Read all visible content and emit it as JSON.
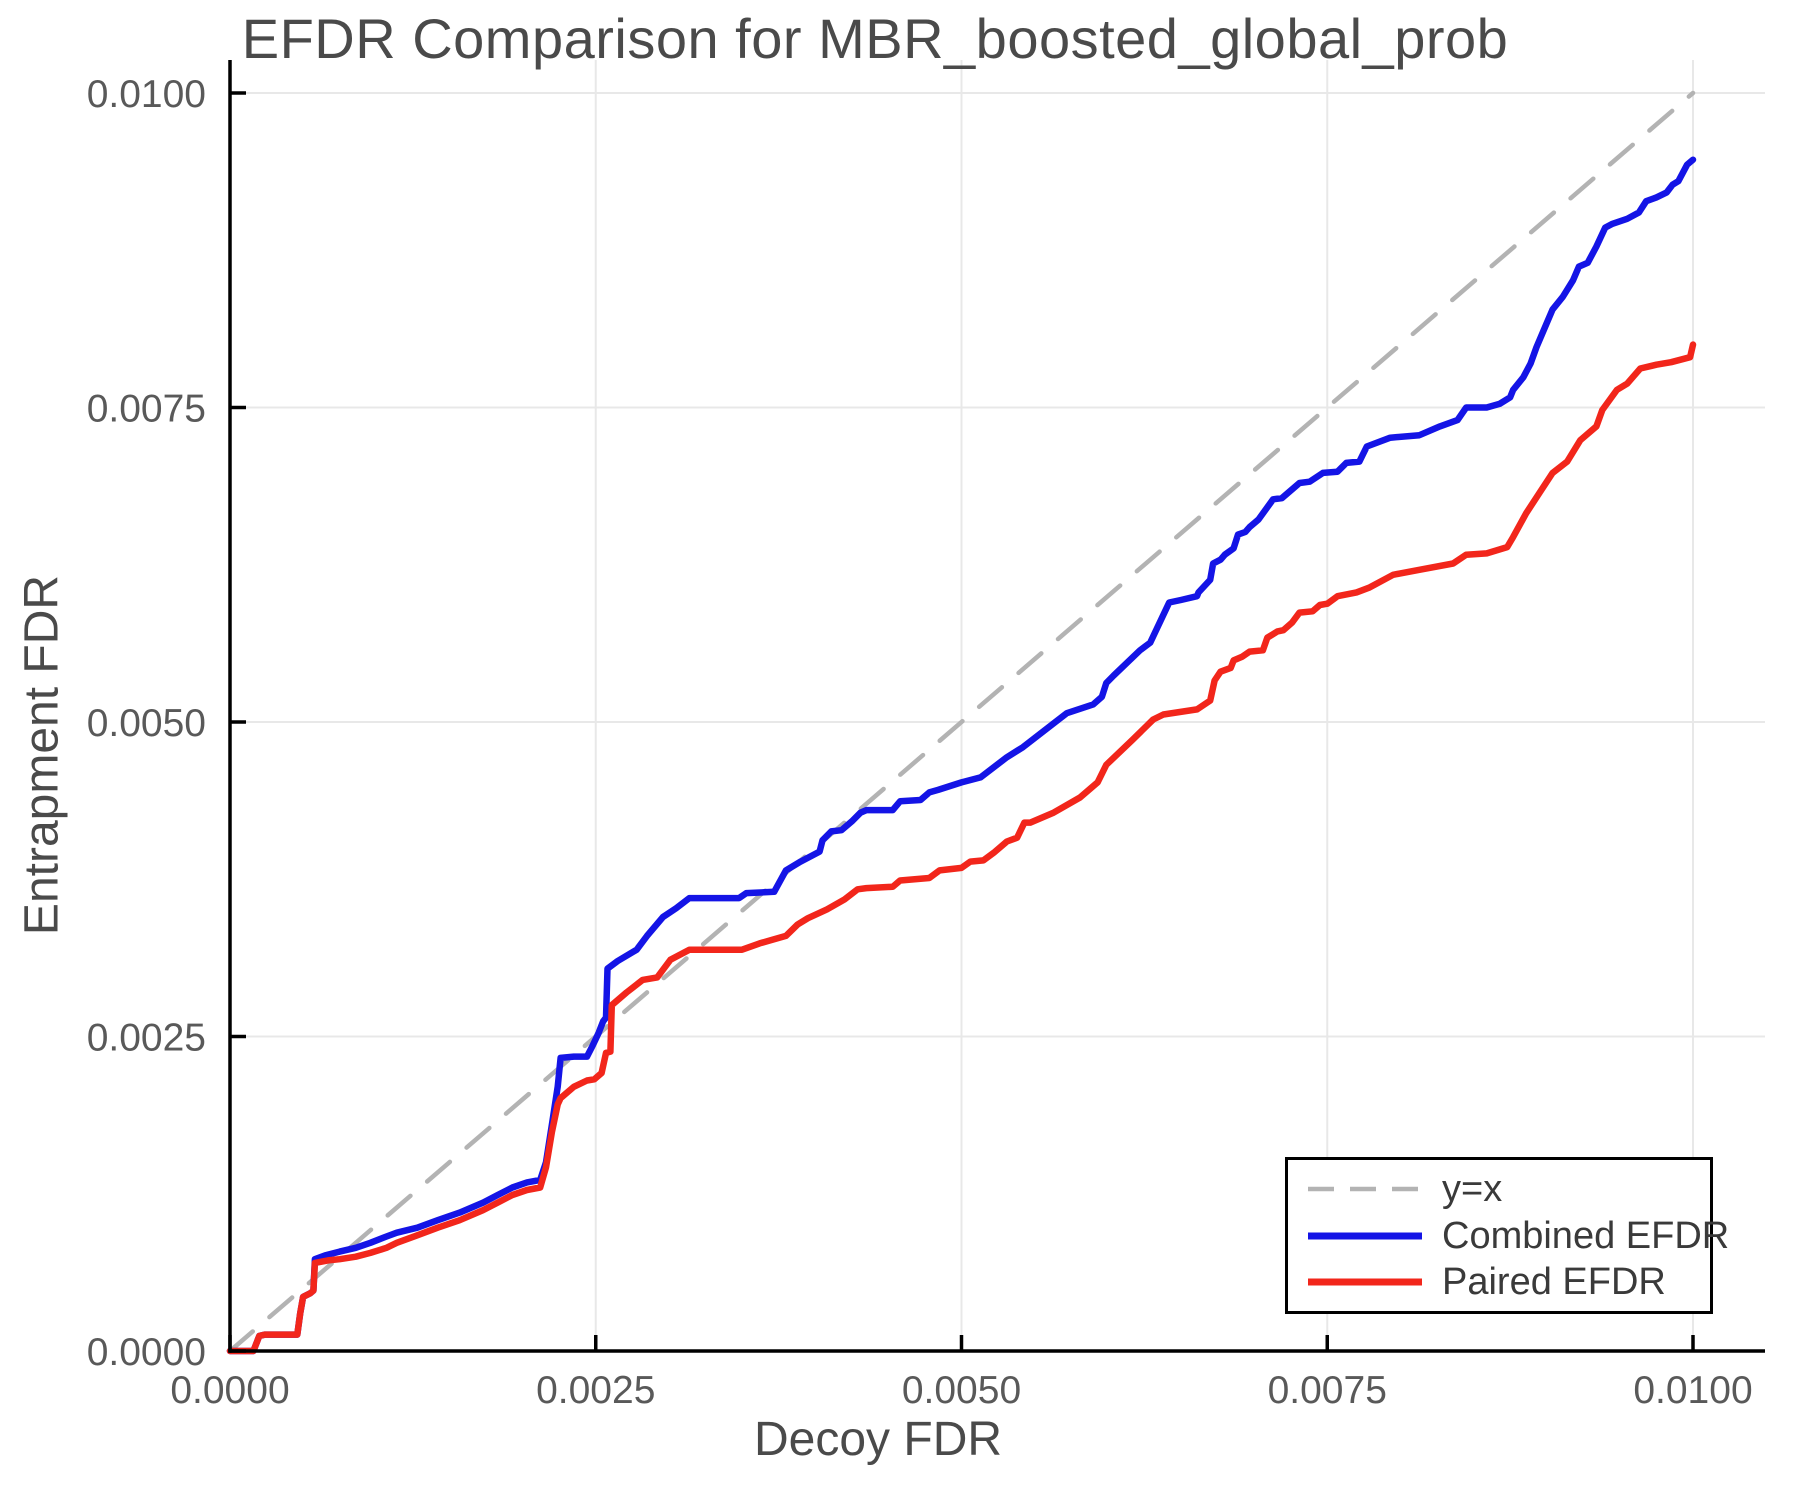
{
  "chart_data": {
    "type": "line",
    "title": "EFDR Comparison for MBR_boosted_global_prob",
    "xlabel": "Decoy FDR",
    "ylabel": "Entrapment FDR",
    "xlim": [
      0,
      0.01
    ],
    "ylim": [
      0,
      0.01
    ],
    "grid": true,
    "legend_position": "bottom-right",
    "x_ticks": {
      "values": [
        0,
        0.0025,
        0.005,
        0.0075,
        0.01
      ],
      "labels": [
        "0.0000",
        "0.0025",
        "0.0050",
        "0.0075",
        "0.0100"
      ]
    },
    "y_ticks": {
      "values": [
        0,
        0.0025,
        0.005,
        0.0075,
        0.01
      ],
      "labels": [
        "0.0000",
        "0.0025",
        "0.0050",
        "0.0075",
        "0.0100"
      ]
    },
    "colors": {
      "identity_line": "#b3b3b3",
      "combined": "#1414e6",
      "paired": "#f2261b",
      "grid": "#e8e8e8",
      "spine": "#000000",
      "tick_label": "#595959",
      "title": "#4a4a4a"
    },
    "series": [
      {
        "name": "y=x",
        "style": "dashed",
        "color": "#b3b3b3",
        "points": [
          [
            0,
            0
          ],
          [
            0.01,
            0.01
          ]
        ]
      },
      {
        "name": "Combined EFDR",
        "style": "solid",
        "color": "#1414e6",
        "points": [
          [
            0,
            0
          ],
          [
            0.00016,
            0
          ],
          [
            0.0002,
            0.00012
          ],
          [
            0.00024,
            0.00013
          ],
          [
            0.00046,
            0.00013
          ],
          [
            0.00048,
            0.0003
          ],
          [
            0.0005,
            0.00043
          ],
          [
            0.00055,
            0.00046
          ],
          [
            0.00057,
            0.00048
          ],
          [
            0.00058,
            0.00073
          ],
          [
            0.00065,
            0.00076
          ],
          [
            0.00075,
            0.00079
          ],
          [
            0.00086,
            0.00082
          ],
          [
            0.00096,
            0.00086
          ],
          [
            0.00107,
            0.00091
          ],
          [
            0.00114,
            0.00094
          ],
          [
            0.00128,
            0.00098
          ],
          [
            0.00142,
            0.00104
          ],
          [
            0.00157,
            0.0011
          ],
          [
            0.00173,
            0.00118
          ],
          [
            0.00183,
            0.00124
          ],
          [
            0.00193,
            0.0013
          ],
          [
            0.00203,
            0.00134
          ],
          [
            0.00212,
            0.00136
          ],
          [
            0.00216,
            0.0015
          ],
          [
            0.0022,
            0.0018
          ],
          [
            0.00224,
            0.0021
          ],
          [
            0.00226,
            0.00233
          ],
          [
            0.00235,
            0.00234
          ],
          [
            0.00244,
            0.00234
          ],
          [
            0.00248,
            0.00243
          ],
          [
            0.00252,
            0.00253
          ],
          [
            0.00255,
            0.00262
          ],
          [
            0.00257,
            0.00265
          ],
          [
            0.00258,
            0.00304
          ],
          [
            0.00265,
            0.0031
          ],
          [
            0.00278,
            0.00319
          ],
          [
            0.00285,
            0.0033
          ],
          [
            0.00296,
            0.00345
          ],
          [
            0.00305,
            0.00352
          ],
          [
            0.00314,
            0.0036
          ],
          [
            0.00348,
            0.0036
          ],
          [
            0.00353,
            0.00364
          ],
          [
            0.00372,
            0.00365
          ],
          [
            0.0038,
            0.00382
          ],
          [
            0.0039,
            0.00389
          ],
          [
            0.00403,
            0.00397
          ],
          [
            0.00405,
            0.00406
          ],
          [
            0.00411,
            0.00413
          ],
          [
            0.00418,
            0.00414
          ],
          [
            0.00425,
            0.00421
          ],
          [
            0.00431,
            0.00428
          ],
          [
            0.00435,
            0.0043
          ],
          [
            0.00453,
            0.0043
          ],
          [
            0.00458,
            0.00437
          ],
          [
            0.00472,
            0.00438
          ],
          [
            0.00478,
            0.00444
          ],
          [
            0.00484,
            0.00446
          ],
          [
            0.005,
            0.00452
          ],
          [
            0.00513,
            0.00456
          ],
          [
            0.00531,
            0.00472
          ],
          [
            0.00542,
            0.0048
          ],
          [
            0.00563,
            0.00499
          ],
          [
            0.00572,
            0.00507
          ],
          [
            0.0059,
            0.00514
          ],
          [
            0.00596,
            0.0052
          ],
          [
            0.00599,
            0.00531
          ],
          [
            0.00604,
            0.00537
          ],
          [
            0.00622,
            0.00557
          ],
          [
            0.00629,
            0.00563
          ],
          [
            0.00642,
            0.00595
          ],
          [
            0.0065,
            0.00597
          ],
          [
            0.00661,
            0.006
          ],
          [
            0.00662,
            0.00603
          ],
          [
            0.0067,
            0.00613
          ],
          [
            0.00672,
            0.00626
          ],
          [
            0.00677,
            0.00629
          ],
          [
            0.0068,
            0.00633
          ],
          [
            0.00686,
            0.00638
          ],
          [
            0.00689,
            0.00649
          ],
          [
            0.00694,
            0.00651
          ],
          [
            0.00697,
            0.00655
          ],
          [
            0.00701,
            0.00659
          ],
          [
            0.00703,
            0.00661
          ],
          [
            0.00713,
            0.00677
          ],
          [
            0.00719,
            0.00678
          ],
          [
            0.00731,
            0.0069
          ],
          [
            0.00738,
            0.00691
          ],
          [
            0.00747,
            0.00698
          ],
          [
            0.00757,
            0.00699
          ],
          [
            0.00763,
            0.00706
          ],
          [
            0.00772,
            0.00707
          ],
          [
            0.00777,
            0.00719
          ],
          [
            0.00793,
            0.00726
          ],
          [
            0.00813,
            0.00728
          ],
          [
            0.00827,
            0.00735
          ],
          [
            0.00839,
            0.0074
          ],
          [
            0.00845,
            0.0075
          ],
          [
            0.00859,
            0.0075
          ],
          [
            0.00868,
            0.00753
          ],
          [
            0.00875,
            0.00758
          ],
          [
            0.00877,
            0.00764
          ],
          [
            0.00884,
            0.00774
          ],
          [
            0.00889,
            0.00785
          ],
          [
            0.00893,
            0.00798
          ],
          [
            0.009,
            0.00817
          ],
          [
            0.00904,
            0.00828
          ],
          [
            0.00911,
            0.00838
          ],
          [
            0.00918,
            0.00851
          ],
          [
            0.00922,
            0.00862
          ],
          [
            0.00928,
            0.00865
          ],
          [
            0.00934,
            0.00878
          ],
          [
            0.0094,
            0.00893
          ],
          [
            0.00945,
            0.00896
          ],
          [
            0.00955,
            0.009
          ],
          [
            0.00963,
            0.00905
          ],
          [
            0.00968,
            0.00914
          ],
          [
            0.00975,
            0.00917
          ],
          [
            0.00982,
            0.00921
          ],
          [
            0.00986,
            0.00927
          ],
          [
            0.0099,
            0.0093
          ],
          [
            0.00996,
            0.00943
          ],
          [
            0.01,
            0.00947
          ]
        ]
      },
      {
        "name": "Paired EFDR",
        "style": "solid",
        "color": "#f2261b",
        "points": [
          [
            0,
            0
          ],
          [
            0.00016,
            0
          ],
          [
            0.0002,
            0.00012
          ],
          [
            0.00024,
            0.00013
          ],
          [
            0.00046,
            0.00013
          ],
          [
            0.00048,
            0.0003
          ],
          [
            0.0005,
            0.00043
          ],
          [
            0.00055,
            0.00046
          ],
          [
            0.00057,
            0.00048
          ],
          [
            0.00058,
            0.0007
          ],
          [
            0.00067,
            0.00072
          ],
          [
            0.00075,
            0.00073
          ],
          [
            0.00086,
            0.00075
          ],
          [
            0.00096,
            0.00078
          ],
          [
            0.00107,
            0.00082
          ],
          [
            0.00114,
            0.00086
          ],
          [
            0.00128,
            0.00092
          ],
          [
            0.00142,
            0.00098
          ],
          [
            0.00157,
            0.00104
          ],
          [
            0.00173,
            0.00112
          ],
          [
            0.00183,
            0.00118
          ],
          [
            0.00193,
            0.00124
          ],
          [
            0.00203,
            0.00128
          ],
          [
            0.00212,
            0.0013
          ],
          [
            0.00216,
            0.00146
          ],
          [
            0.0022,
            0.00174
          ],
          [
            0.00224,
            0.00196
          ],
          [
            0.00226,
            0.00201
          ],
          [
            0.00235,
            0.0021
          ],
          [
            0.00244,
            0.00215
          ],
          [
            0.00249,
            0.00216
          ],
          [
            0.00254,
            0.00221
          ],
          [
            0.00257,
            0.00237
          ],
          [
            0.0026,
            0.00238
          ],
          [
            0.00261,
            0.00275
          ],
          [
            0.00271,
            0.00285
          ],
          [
            0.00282,
            0.00295
          ],
          [
            0.00292,
            0.00297
          ],
          [
            0.00301,
            0.00311
          ],
          [
            0.00314,
            0.00319
          ],
          [
            0.0035,
            0.00319
          ],
          [
            0.00362,
            0.00324
          ],
          [
            0.00371,
            0.00327
          ],
          [
            0.0038,
            0.0033
          ],
          [
            0.00388,
            0.00339
          ],
          [
            0.00395,
            0.00344
          ],
          [
            0.00408,
            0.00351
          ],
          [
            0.0042,
            0.00359
          ],
          [
            0.00429,
            0.00367
          ],
          [
            0.00435,
            0.00368
          ],
          [
            0.00453,
            0.00369
          ],
          [
            0.00458,
            0.00374
          ],
          [
            0.00478,
            0.00376
          ],
          [
            0.00485,
            0.00382
          ],
          [
            0.005,
            0.00384
          ],
          [
            0.00506,
            0.00389
          ],
          [
            0.00515,
            0.0039
          ],
          [
            0.00522,
            0.00396
          ],
          [
            0.00531,
            0.00405
          ],
          [
            0.00538,
            0.00408
          ],
          [
            0.00543,
            0.0042
          ],
          [
            0.00547,
            0.0042
          ],
          [
            0.00563,
            0.00428
          ],
          [
            0.00581,
            0.0044
          ],
          [
            0.00593,
            0.00452
          ],
          [
            0.00599,
            0.00466
          ],
          [
            0.00617,
            0.00486
          ],
          [
            0.00631,
            0.00502
          ],
          [
            0.00638,
            0.00506
          ],
          [
            0.00661,
            0.0051
          ],
          [
            0.0067,
            0.00517
          ],
          [
            0.00673,
            0.00533
          ],
          [
            0.00677,
            0.0054
          ],
          [
            0.00684,
            0.00543
          ],
          [
            0.00686,
            0.00549
          ],
          [
            0.00692,
            0.00552
          ],
          [
            0.00697,
            0.00556
          ],
          [
            0.00706,
            0.00557
          ],
          [
            0.00709,
            0.00567
          ],
          [
            0.00716,
            0.00572
          ],
          [
            0.0072,
            0.00573
          ],
          [
            0.00726,
            0.00579
          ],
          [
            0.00731,
            0.00587
          ],
          [
            0.0074,
            0.00588
          ],
          [
            0.00745,
            0.00593
          ],
          [
            0.0075,
            0.00594
          ],
          [
            0.00757,
            0.006
          ],
          [
            0.0077,
            0.00603
          ],
          [
            0.00779,
            0.00607
          ],
          [
            0.00795,
            0.00617
          ],
          [
            0.00813,
            0.00621
          ],
          [
            0.00836,
            0.00626
          ],
          [
            0.00845,
            0.00633
          ],
          [
            0.00859,
            0.00634
          ],
          [
            0.00873,
            0.00639
          ],
          [
            0.00877,
            0.00647
          ],
          [
            0.00886,
            0.00666
          ],
          [
            0.00895,
            0.00682
          ],
          [
            0.00904,
            0.00698
          ],
          [
            0.00914,
            0.00707
          ],
          [
            0.00923,
            0.00724
          ],
          [
            0.00934,
            0.00735
          ],
          [
            0.00938,
            0.00748
          ],
          [
            0.00948,
            0.00764
          ],
          [
            0.00955,
            0.00769
          ],
          [
            0.00964,
            0.00781
          ],
          [
            0.00975,
            0.00784
          ],
          [
            0.00985,
            0.00786
          ],
          [
            0.00998,
            0.0079
          ],
          [
            0.01,
            0.008
          ]
        ]
      }
    ]
  }
}
